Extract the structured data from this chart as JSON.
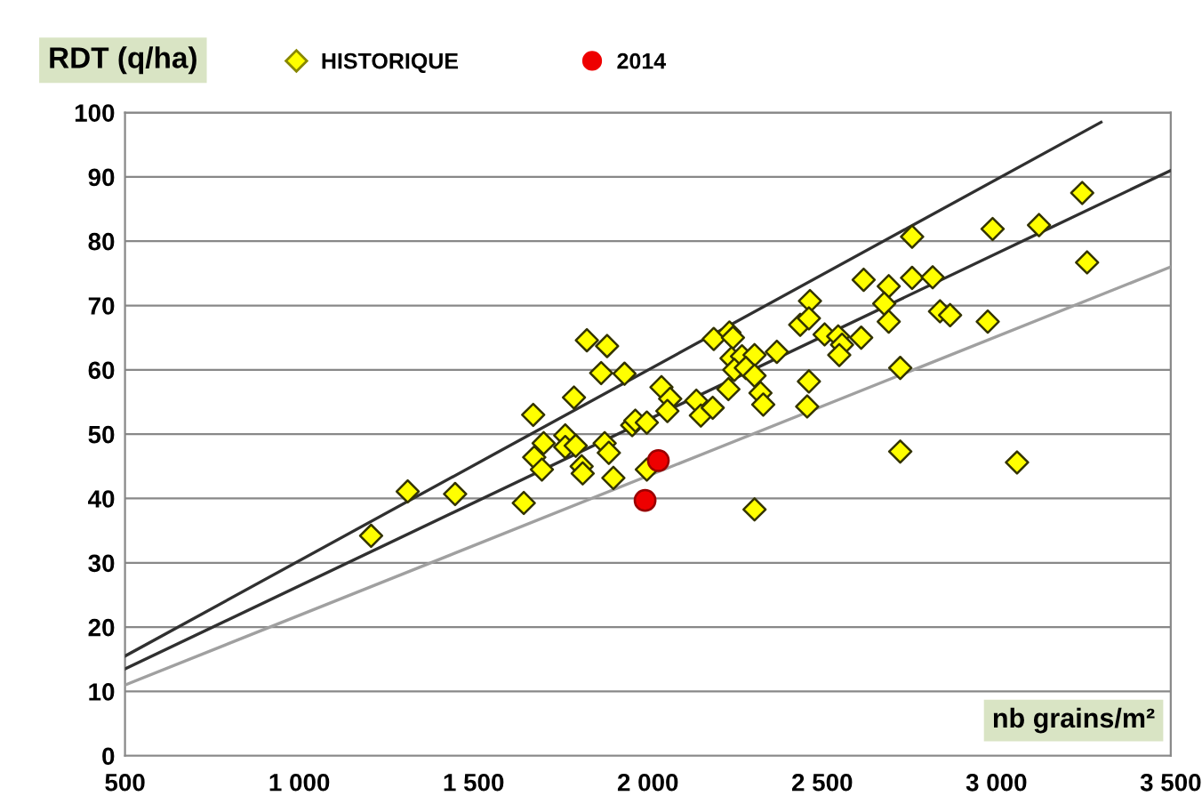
{
  "chart_data": {
    "type": "scatter",
    "xlabel": "nb grains/m²",
    "ylabel": "RDT (q/ha)",
    "xlim": [
      500,
      3500
    ],
    "ylim": [
      0,
      100
    ],
    "xticks": [
      500,
      {
        "value": 1000,
        "label": "1 000"
      },
      {
        "value": 1500,
        "label": "1 500"
      },
      {
        "value": 2000,
        "label": "2 000"
      },
      {
        "value": 2500,
        "label": "2 500"
      },
      {
        "value": 3000,
        "label": "3 000"
      },
      {
        "value": 3500,
        "label": "3 500"
      }
    ],
    "yticks": [
      0,
      10,
      20,
      30,
      40,
      50,
      60,
      70,
      80,
      90,
      100
    ],
    "grid": "y",
    "legend": "top",
    "series": [
      {
        "name": "HISTORIQUE",
        "marker": "diamond",
        "color": "#ffff00",
        "x": [
          1825,
          1883,
          1866,
          1933,
          1788,
          1671,
          1701,
          1763,
          1763,
          1793,
          1876,
          1888,
          1674,
          1696,
          1810,
          1813,
          1901,
          1955,
          1311,
          1447,
          1644,
          1206,
          2619,
          2691,
          2758,
          2465,
          2437,
          2462,
          2678,
          2691,
          2189,
          2234,
          2244,
          2507,
          2546,
          2557,
          2549,
          2612,
          2370,
          2240,
          2270,
          2306,
          2248,
          2281,
          2306,
          2231,
          2323,
          2331,
          2462,
          2457,
          2724,
          2724,
          2306,
          2039,
          2064,
          2056,
          2139,
          2152,
          2186,
          1964,
          1997,
          1997,
          2758,
          2989,
          3122,
          3246,
          2817,
          3260,
          2838,
          2867,
          2975,
          3059
        ],
        "values": [
          64.6,
          63.7,
          59.5,
          59.4,
          55.7,
          53.0,
          48.6,
          49.8,
          48.0,
          48.2,
          48.6,
          47.1,
          46.4,
          44.5,
          45.0,
          43.9,
          43.2,
          51.4,
          41.1,
          40.7,
          39.3,
          34.2,
          74.0,
          73.0,
          74.3,
          70.7,
          67.0,
          68.0,
          70.3,
          67.5,
          64.8,
          65.8,
          65.0,
          65.5,
          65.2,
          63.9,
          62.3,
          65.0,
          62.8,
          61.8,
          62.1,
          62.3,
          60.0,
          60.3,
          59.1,
          57.0,
          56.4,
          54.6,
          58.2,
          54.3,
          60.3,
          47.3,
          38.3,
          57.3,
          55.5,
          53.6,
          55.2,
          52.9,
          54.1,
          52.1,
          51.8,
          44.5,
          80.7,
          81.9,
          82.5,
          87.5,
          74.4,
          76.7,
          69.1,
          68.5,
          67.5,
          45.6
        ]
      },
      {
        "name": "2014",
        "marker": "circle",
        "color": "#ee0000",
        "x": [
          2030,
          1992
        ],
        "values": [
          45.9,
          39.7
        ]
      },
      {
        "type": "line",
        "color": "#303030",
        "x": [
          500,
          3300
        ],
        "values": [
          15.5,
          98.5
        ]
      },
      {
        "type": "line",
        "color": "#303030",
        "x": [
          500,
          3500
        ],
        "values": [
          13.5,
          91
        ]
      },
      {
        "type": "line",
        "color": "#a0a0a0",
        "x": [
          500,
          3500
        ],
        "values": [
          11,
          76
        ]
      }
    ]
  }
}
